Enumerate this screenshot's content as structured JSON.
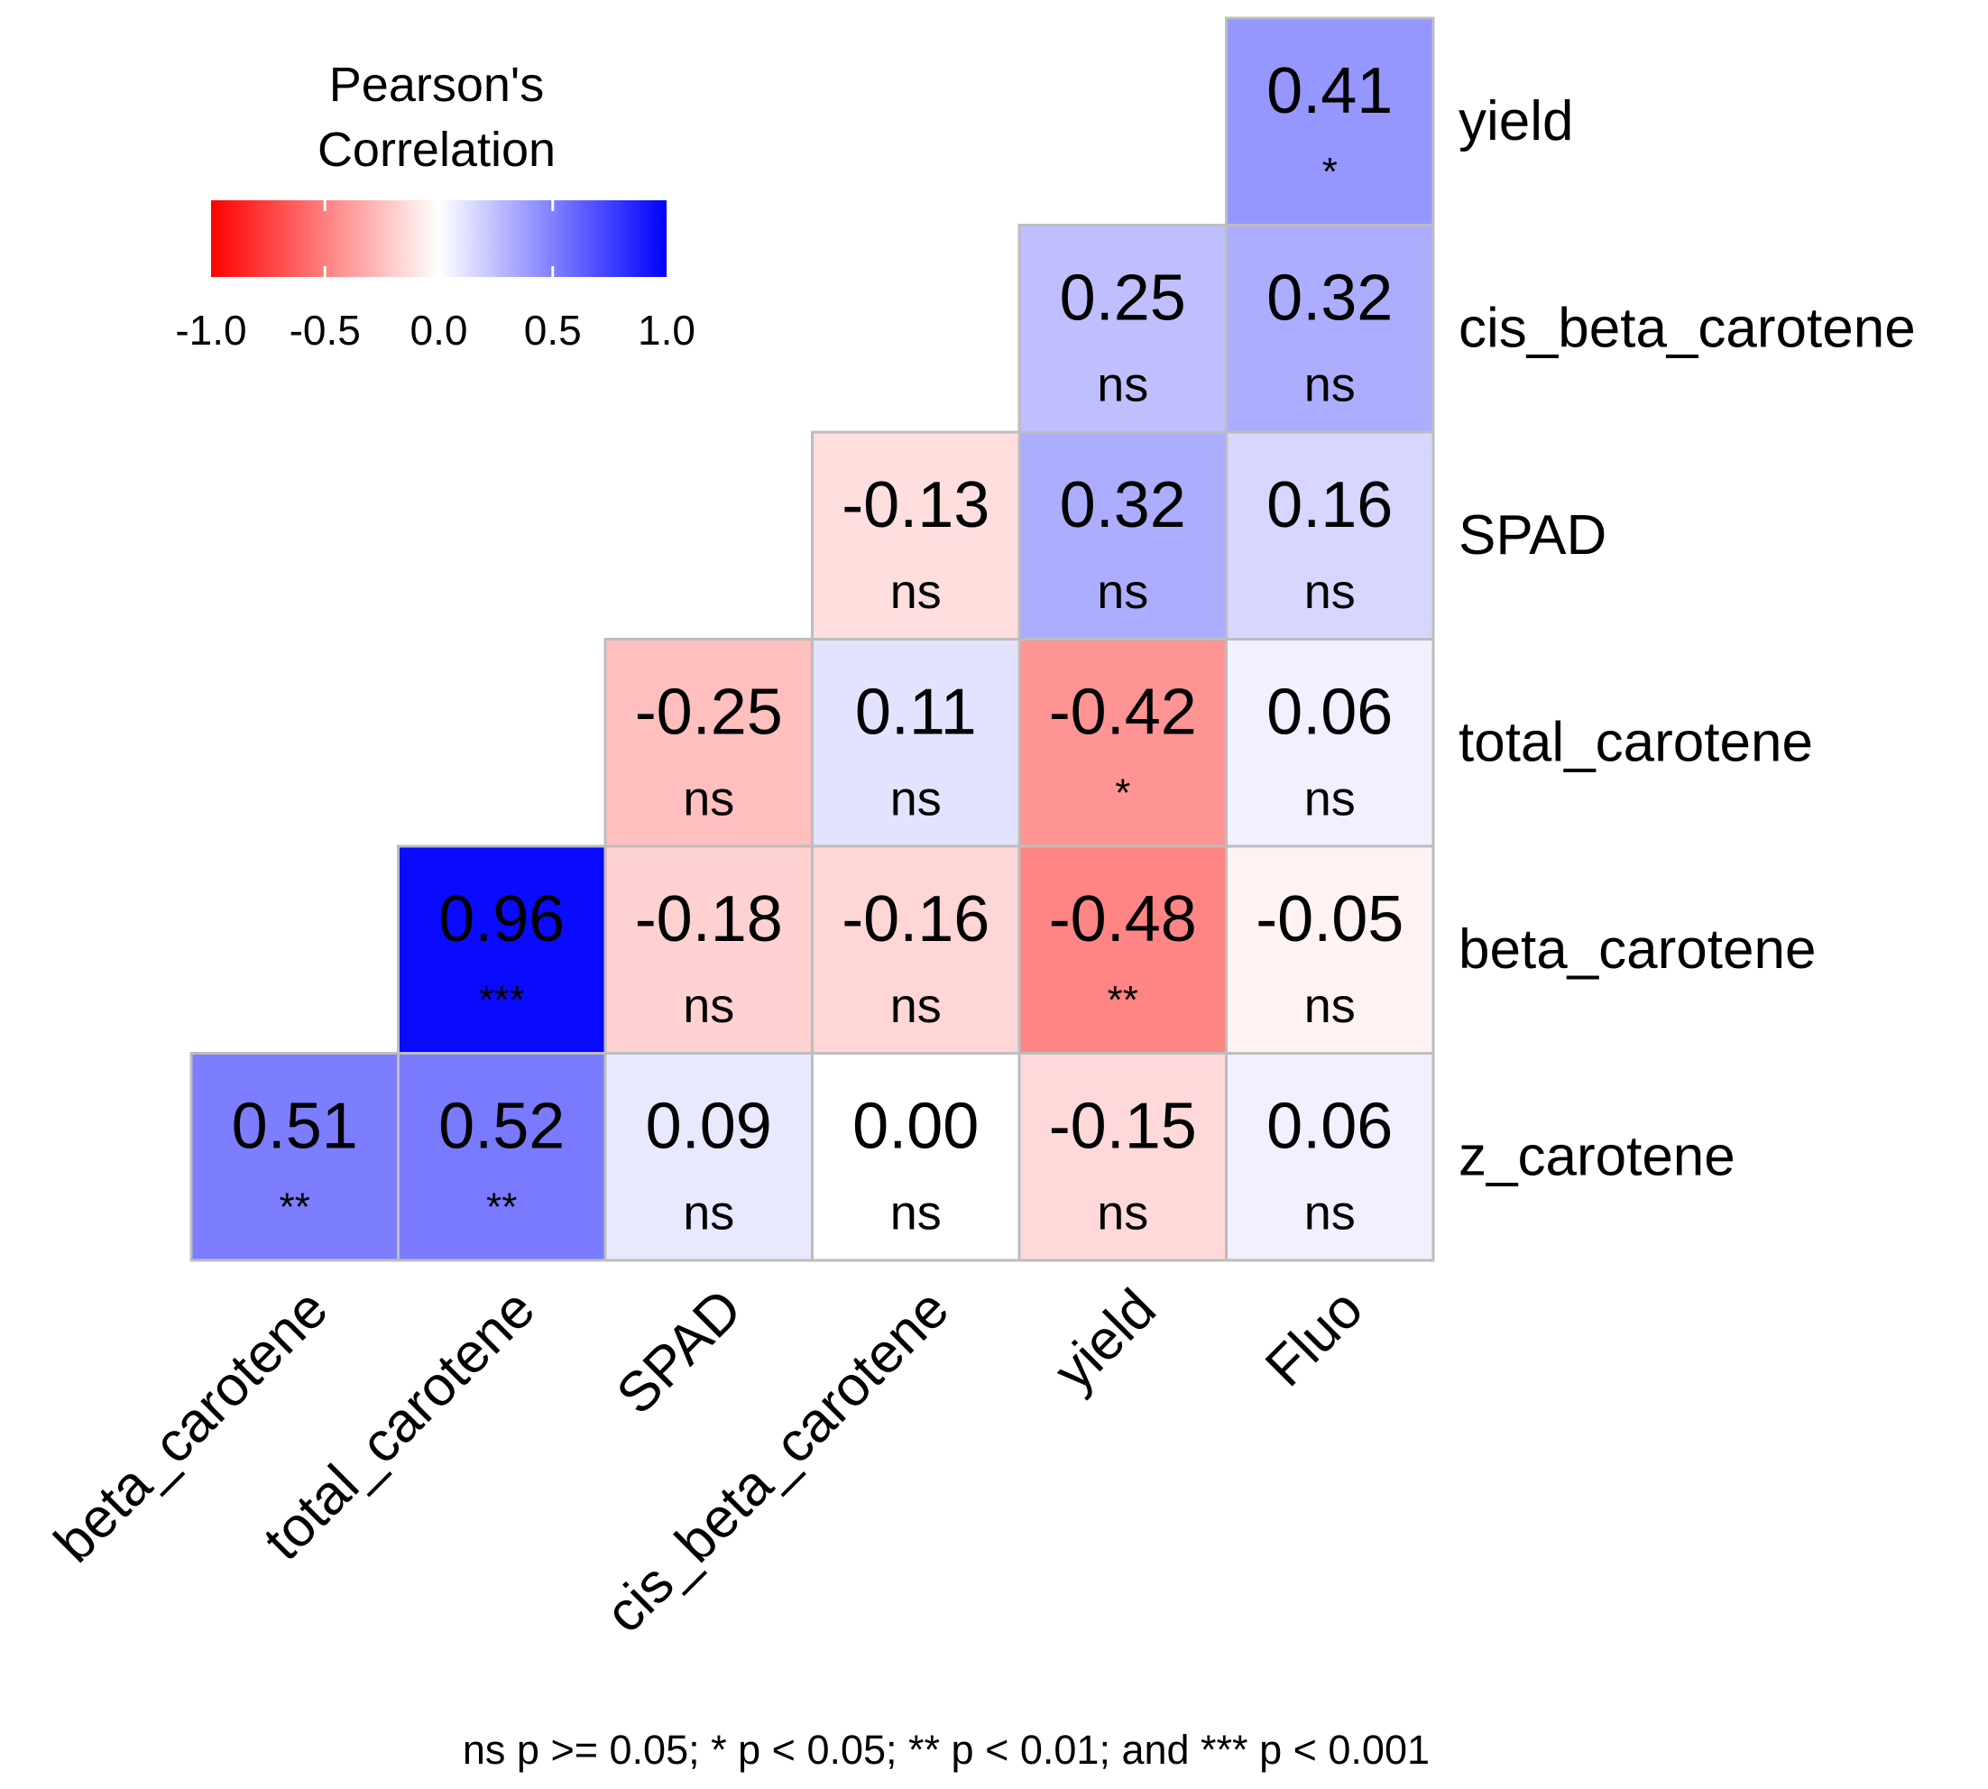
{
  "chart_data": {
    "type": "heatmap",
    "title": "",
    "columns": [
      "beta_carotene",
      "total_carotene",
      "SPAD",
      "cis_beta_carotene",
      "yield",
      "Fluo"
    ],
    "rows": [
      "yield",
      "cis_beta_carotene",
      "SPAD",
      "total_carotene",
      "beta_carotene",
      "z_carotene"
    ],
    "cells": [
      {
        "row": "yield",
        "col": "Fluo",
        "value": 0.41,
        "sig": "*"
      },
      {
        "row": "cis_beta_carotene",
        "col": "yield",
        "value": 0.25,
        "sig": "ns"
      },
      {
        "row": "cis_beta_carotene",
        "col": "Fluo",
        "value": 0.32,
        "sig": "ns"
      },
      {
        "row": "SPAD",
        "col": "cis_beta_carotene",
        "value": -0.13,
        "sig": "ns"
      },
      {
        "row": "SPAD",
        "col": "yield",
        "value": 0.32,
        "sig": "ns"
      },
      {
        "row": "SPAD",
        "col": "Fluo",
        "value": 0.16,
        "sig": "ns"
      },
      {
        "row": "total_carotene",
        "col": "SPAD",
        "value": -0.25,
        "sig": "ns"
      },
      {
        "row": "total_carotene",
        "col": "cis_beta_carotene",
        "value": 0.11,
        "sig": "ns"
      },
      {
        "row": "total_carotene",
        "col": "yield",
        "value": -0.42,
        "sig": "*"
      },
      {
        "row": "total_carotene",
        "col": "Fluo",
        "value": 0.06,
        "sig": "ns"
      },
      {
        "row": "beta_carotene",
        "col": "total_carotene",
        "value": 0.96,
        "sig": "***"
      },
      {
        "row": "beta_carotene",
        "col": "SPAD",
        "value": -0.18,
        "sig": "ns"
      },
      {
        "row": "beta_carotene",
        "col": "cis_beta_carotene",
        "value": -0.16,
        "sig": "ns"
      },
      {
        "row": "beta_carotene",
        "col": "yield",
        "value": -0.48,
        "sig": "**"
      },
      {
        "row": "beta_carotene",
        "col": "Fluo",
        "value": -0.05,
        "sig": "ns"
      },
      {
        "row": "z_carotene",
        "col": "beta_carotene",
        "value": 0.51,
        "sig": "**"
      },
      {
        "row": "z_carotene",
        "col": "total_carotene",
        "value": 0.52,
        "sig": "**"
      },
      {
        "row": "z_carotene",
        "col": "SPAD",
        "value": 0.09,
        "sig": "ns"
      },
      {
        "row": "z_carotene",
        "col": "cis_beta_carotene",
        "value": 0.0,
        "sig": "ns"
      },
      {
        "row": "z_carotene",
        "col": "yield",
        "value": -0.15,
        "sig": "ns"
      },
      {
        "row": "z_carotene",
        "col": "Fluo",
        "value": 0.06,
        "sig": "ns"
      }
    ],
    "legend": {
      "title_line1": "Pearson's",
      "title_line2": "Correlation",
      "range": [
        -1.0,
        1.0
      ],
      "ticks": [
        -1.0,
        -0.5,
        0.0,
        0.5,
        1.0
      ],
      "tick_labels": [
        "-1.0",
        "-0.5",
        "0.0",
        "0.5",
        "1.0"
      ],
      "low_color": "#ff0000",
      "mid_color": "#ffffff",
      "high_color": "#0000ff",
      "placement": "top-left"
    },
    "footnote": "ns p >= 0.05; * p < 0.05; ** p < 0.01; and *** p < 0.001"
  }
}
